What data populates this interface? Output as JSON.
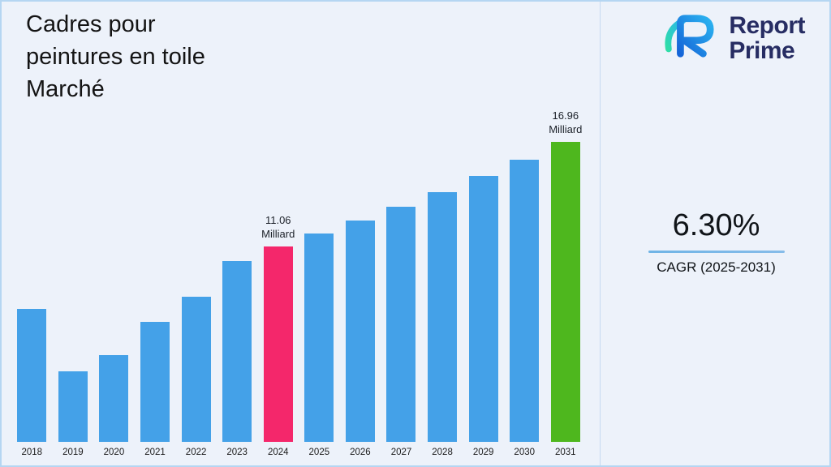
{
  "page": {
    "title": "Cadres pour peintures en toile Marché",
    "background_color": "#edf2fa",
    "border_color": "#b5d6f2"
  },
  "logo": {
    "name": "Report Prime",
    "line1": "Report",
    "line2": "Prime",
    "text_color": "#272d63",
    "mark_colors": {
      "teal": "#2fdda8",
      "blue_dark": "#1565d8",
      "blue_light": "#2bb3f0"
    }
  },
  "stats": {
    "cagr_value": "6.30%",
    "cagr_label": "CAGR (2025-2031)",
    "line_color": "#79b7e7"
  },
  "chart_data": {
    "type": "bar",
    "title": "Cadres pour peintures en toile Marché",
    "xlabel": "",
    "ylabel": "",
    "unit": "Milliard",
    "ylim": [
      0,
      17.5
    ],
    "grid": false,
    "legend": false,
    "categories": [
      "2018",
      "2019",
      "2020",
      "2021",
      "2022",
      "2023",
      "2024",
      "2025",
      "2026",
      "2027",
      "2028",
      "2029",
      "2030",
      "2031"
    ],
    "values": [
      7.5,
      4.0,
      4.9,
      6.8,
      8.2,
      10.2,
      11.06,
      11.76,
      12.5,
      13.29,
      14.13,
      15.02,
      15.96,
      16.96
    ],
    "colors": {
      "default": "#44a1e8",
      "2024": "#f4276b",
      "2031": "#4eb71e"
    },
    "value_labels": [
      {
        "year": "2024",
        "value": "11.06",
        "unit": "Milliard"
      },
      {
        "year": "2031",
        "value": "16.96",
        "unit": "Milliard"
      }
    ]
  }
}
